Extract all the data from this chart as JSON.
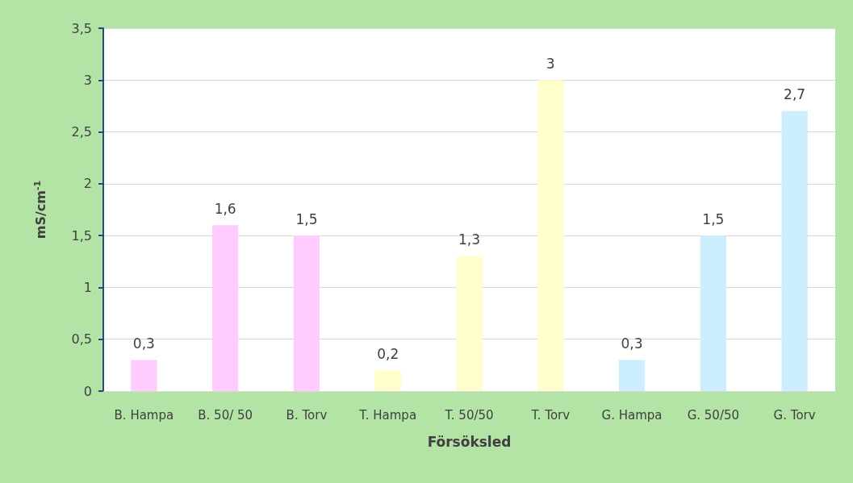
{
  "chart_data": {
    "type": "bar",
    "xlabel": "Försöksled",
    "ylabel": "mS/cm$^{-1}$",
    "categories": [
      "B. Hampa",
      "B. 50/ 50",
      "B. Torv",
      "T. Hampa",
      "T. 50/50",
      "T. Torv",
      "G. Hampa",
      "G. 50/50",
      "G. Torv"
    ],
    "values": [
      0.3,
      1.6,
      1.5,
      0.2,
      1.3,
      3,
      0.3,
      1.5,
      2.7
    ],
    "value_labels": [
      "0,3",
      "1,6",
      "1,5",
      "0,2",
      "1,3",
      "3",
      "0,3",
      "1,5",
      "2,7"
    ],
    "colors": [
      "#ffccff",
      "#ffccff",
      "#ffccff",
      "#ffffcc",
      "#ffffcc",
      "#ffffcc",
      "#cceeff",
      "#cceeff",
      "#cceeff"
    ],
    "ylim": [
      0,
      3.5
    ],
    "yticks": [
      0,
      {
        "value": 0.5,
        "label": "0,5"
      },
      1,
      {
        "value": 1.5,
        "label": "1,5"
      },
      2,
      {
        "value": 2.5,
        "label": "2,5"
      },
      3,
      {
        "value": 3.5,
        "label": "3,5"
      }
    ],
    "grid": "y"
  }
}
